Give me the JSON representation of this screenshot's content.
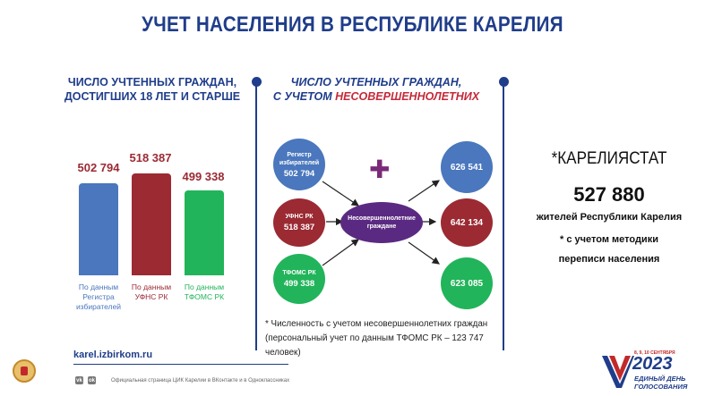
{
  "title": "УЧЕТ НАСЕЛЕНИЯ В РЕСПУБЛИКЕ КАРЕЛИЯ",
  "left_panel": {
    "heading_line1": "ЧИСЛО УЧТЕННЫХ ГРАЖДАН,",
    "heading_line2": "ДОСТИГШИХ 18 ЛЕТ И СТАРШЕ",
    "bars": [
      {
        "value_label": "502 794",
        "value": 502794,
        "caption_line1": "По данным",
        "caption_line2": "Регистра",
        "caption_line3": "избирателей",
        "color": "#4a77bd"
      },
      {
        "value_label": "518 387",
        "value": 518387,
        "caption_line1": "По данным",
        "caption_line2": "УФНС РК",
        "caption_line3": "",
        "color": "#9b2a33"
      },
      {
        "value_label": "499 338",
        "value": 499338,
        "caption_line1": "По данным",
        "caption_line2": "ТФОМС РК",
        "caption_line3": "",
        "color": "#22b45a"
      }
    ]
  },
  "middle_panel": {
    "heading_line1": "ЧИСЛО УЧТЕННЫХ ГРАЖДАН,",
    "heading_line2_prefix": "С УЧЕТОМ ",
    "heading_line2_emph": "НЕСОВЕРШЕННОЛЕТНИХ",
    "sources": [
      {
        "line1": "Регистр",
        "line2": "избирателей",
        "number": "502 794"
      },
      {
        "line1": "УФНС РК",
        "line2": "",
        "number": "518 387"
      },
      {
        "line1": "ТФОМС РК",
        "line2": "",
        "number": "499 338"
      }
    ],
    "center_line1": "Несовершеннолетние",
    "center_line2": "граждане",
    "results": [
      "626 541",
      "642 134",
      "623 085"
    ],
    "plus_sign": "✚",
    "note_line1": "* Численность с учетом несовершеннолетних граждан",
    "note_line2": "(персональный учет по данным ТФОМС РК – 123 747 человек)"
  },
  "right_panel": {
    "source": "*КАРЕЛИЯСТАТ",
    "number": "527 880",
    "line1": "жителей Республики Карелия",
    "line2": "* с учетом методики",
    "line3": "переписи населения"
  },
  "footer": {
    "url": "karel.izbirkom.ru",
    "social_text": "Официальная страница ЦИК Карелии в ВКонтакте и в Одноклассниках",
    "vk_label": "vk",
    "ok_label": "ok",
    "logo_year": "2023",
    "logo_dates": "8, 9, 10 СЕНТЯБРЯ",
    "logo_line1": "ЕДИНЫЙ ДЕНЬ",
    "logo_line2": "ГОЛОСОВАНИЯ"
  },
  "colors": {
    "blue": "#4a77bd",
    "red": "#9b2a33",
    "green": "#22b45a",
    "navy": "#1f3d8a",
    "purple": "#5a2a82",
    "plus": "#7a2a78"
  }
}
